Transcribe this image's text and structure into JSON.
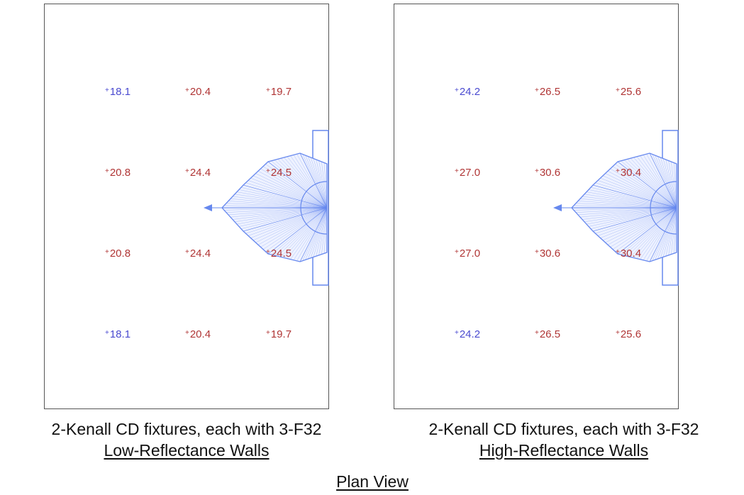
{
  "colors": {
    "low": "#4a4ad0",
    "high": "#b03535",
    "fixture": "#6688ee",
    "border": "#555555"
  },
  "panels": [
    {
      "caption": "2-Kenall CD fixtures, each with 3-F32",
      "subcaption": "Low-Reflectance Walls",
      "grid": [
        [
          {
            "v": "18.1",
            "c": "low"
          },
          {
            "v": "20.4",
            "c": "high"
          },
          {
            "v": "19.7",
            "c": "high"
          }
        ],
        [
          {
            "v": "20.8",
            "c": "high"
          },
          {
            "v": "24.4",
            "c": "high"
          },
          {
            "v": "24.5",
            "c": "high"
          }
        ],
        [
          {
            "v": "20.8",
            "c": "high"
          },
          {
            "v": "24.4",
            "c": "high"
          },
          {
            "v": "24.5",
            "c": "high"
          }
        ],
        [
          {
            "v": "18.1",
            "c": "low"
          },
          {
            "v": "20.4",
            "c": "high"
          },
          {
            "v": "19.7",
            "c": "high"
          }
        ]
      ]
    },
    {
      "caption": "2-Kenall CD fixtures, each with 3-F32",
      "subcaption": "High-Reflectance Walls",
      "grid": [
        [
          {
            "v": "24.2",
            "c": "low"
          },
          {
            "v": "26.5",
            "c": "high"
          },
          {
            "v": "25.6",
            "c": "high"
          }
        ],
        [
          {
            "v": "27.0",
            "c": "high"
          },
          {
            "v": "30.6",
            "c": "high"
          },
          {
            "v": "30.4",
            "c": "high"
          }
        ],
        [
          {
            "v": "27.0",
            "c": "high"
          },
          {
            "v": "30.6",
            "c": "high"
          },
          {
            "v": "30.4",
            "c": "high"
          }
        ],
        [
          {
            "v": "24.2",
            "c": "low"
          },
          {
            "v": "26.5",
            "c": "high"
          },
          {
            "v": "25.6",
            "c": "high"
          }
        ]
      ]
    }
  ],
  "footer": {
    "title": "Plan View"
  }
}
